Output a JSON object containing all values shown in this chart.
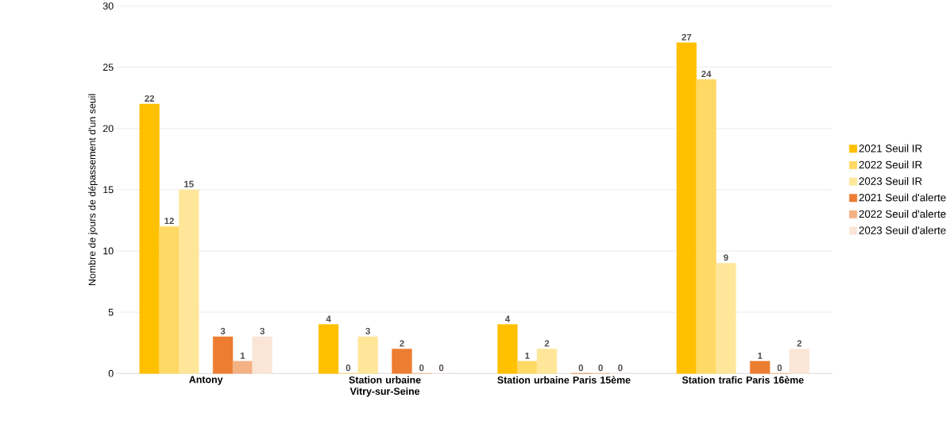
{
  "chart_data": {
    "type": "bar",
    "ylabel": "Nombre de jours de dépassement d'un seuil",
    "categories": [
      "Antony",
      "Station urbaine Vitry-sur-Seine",
      "Station urbaine Paris 15ème",
      "Station trafic Paris 16ème"
    ],
    "series": [
      {
        "name": "2021 Seuil IR",
        "color": "#ffc000",
        "values": [
          22,
          4,
          4,
          27
        ]
      },
      {
        "name": "2022 Seuil IR",
        "color": "#ffd966",
        "values": [
          12,
          0,
          1,
          24
        ]
      },
      {
        "name": "2023 Seuil IR",
        "color": "#ffe699",
        "values": [
          15,
          3,
          2,
          9
        ]
      },
      {
        "name": "2021 Seuil d'alerte",
        "color": "#ed7d31",
        "values": [
          3,
          2,
          0,
          1
        ]
      },
      {
        "name": "2022 Seuil d'alerte",
        "color": "#f4b183",
        "values": [
          1,
          0,
          0,
          0
        ]
      },
      {
        "name": "2023 Seuil d'alerte",
        "color": "#fbe5d6",
        "values": [
          3,
          0,
          0,
          2
        ]
      }
    ],
    "ylim": [
      0,
      30
    ],
    "yticks": [
      0,
      5,
      10,
      15,
      20,
      25,
      30
    ],
    "grid": "y",
    "legend": "right",
    "data_labels": true
  }
}
